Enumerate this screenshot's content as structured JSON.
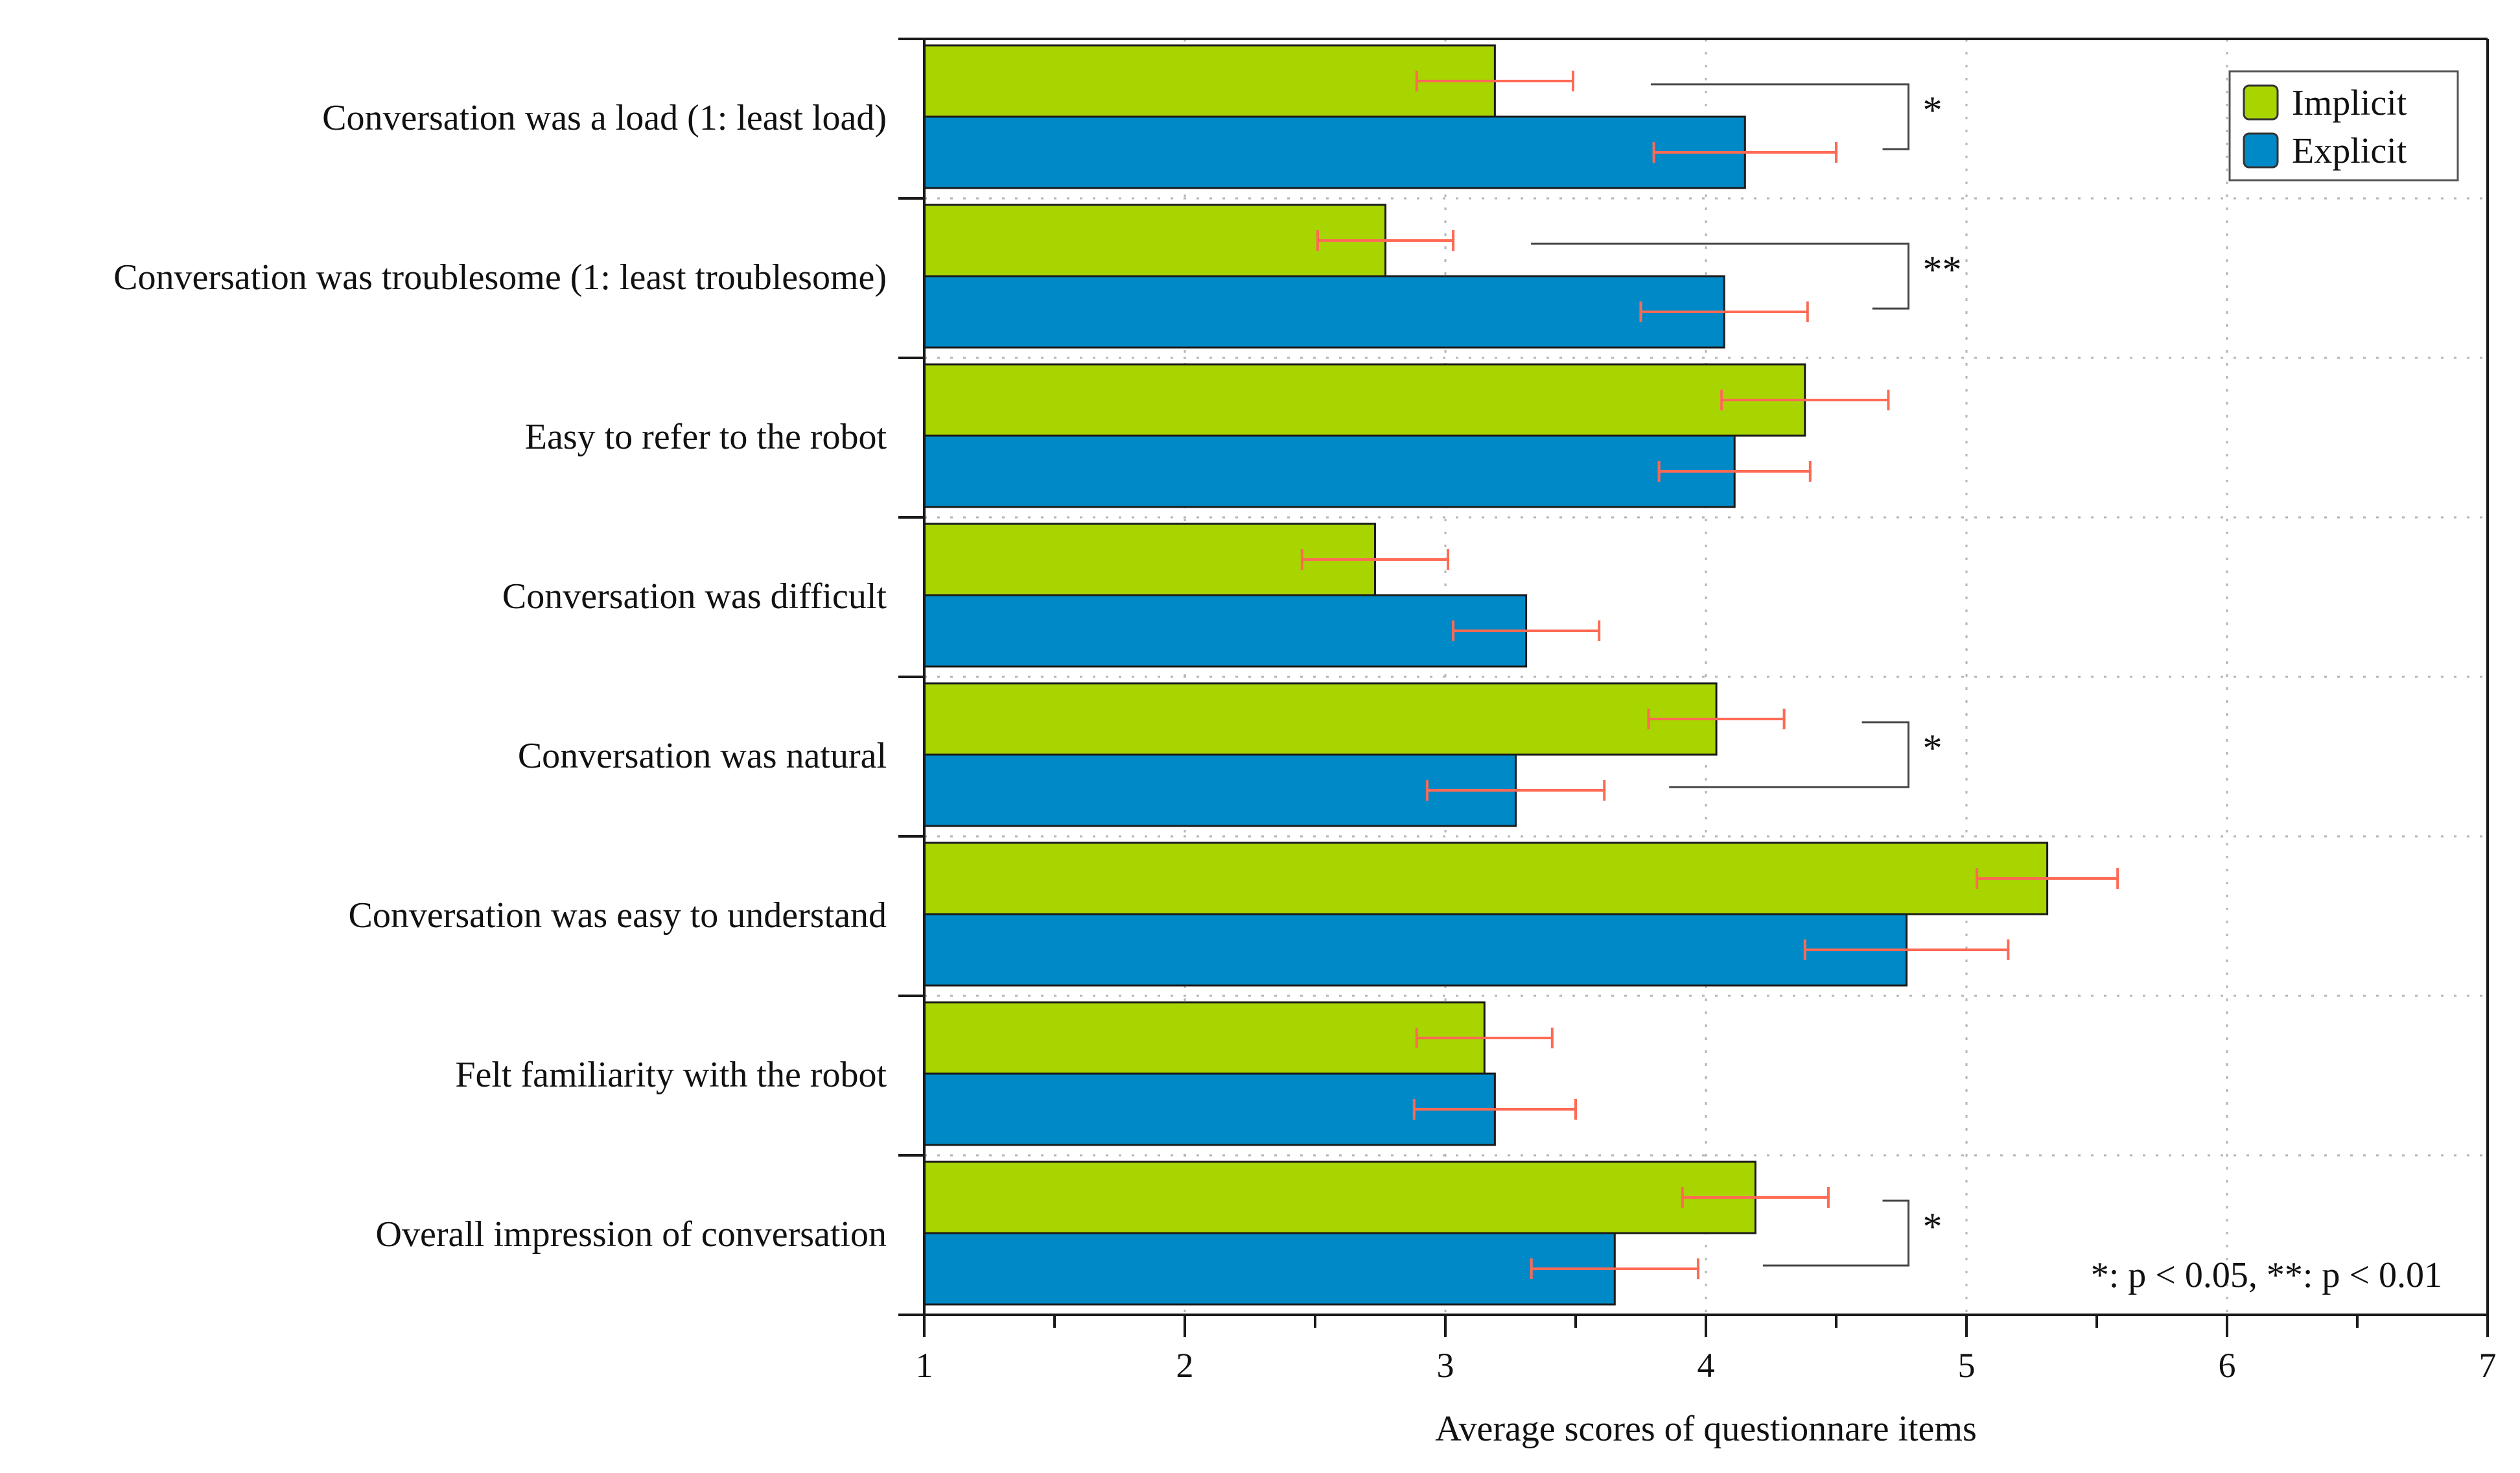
{
  "chart_data": {
    "type": "bar",
    "orientation": "horizontal",
    "categories": [
      "Conversation was a load (1: least load)",
      "Conversation was troublesome (1: least troublesome)",
      "Easy to refer to the robot",
      "Conversation was difficult",
      "Conversation was natural",
      "Conversation was easy to understand",
      "Felt familiarity with the robot",
      "Overall impression of conversation"
    ],
    "series": [
      {
        "name": "Implicit",
        "color": "#a8d400",
        "values": [
          3.19,
          2.77,
          4.38,
          2.73,
          4.04,
          5.31,
          3.15,
          4.19
        ],
        "errors": [
          0.3,
          0.26,
          0.32,
          0.28,
          0.26,
          0.27,
          0.26,
          0.28
        ]
      },
      {
        "name": "Explicit",
        "color": "#0089c7",
        "values": [
          4.15,
          4.07,
          4.11,
          3.31,
          3.27,
          4.77,
          3.19,
          3.65
        ],
        "errors": [
          0.35,
          0.32,
          0.29,
          0.28,
          0.34,
          0.39,
          0.31,
          0.32
        ]
      }
    ],
    "significance": [
      {
        "category_index": 0,
        "label": "*"
      },
      {
        "category_index": 1,
        "label": "**"
      },
      {
        "category_index": 4,
        "label": "*"
      },
      {
        "category_index": 7,
        "label": "*"
      }
    ],
    "xlabel": "Average scores of questionnare items",
    "ylabel": "",
    "xlim": [
      1,
      7
    ],
    "xticks": [
      1,
      2,
      3,
      4,
      5,
      6,
      7
    ],
    "minor_tick_step": 0.5,
    "grid": true,
    "legend": "top-right",
    "note": "*: p < 0.05, **: p < 0.01",
    "errorbar_color": "#ff6a55"
  }
}
